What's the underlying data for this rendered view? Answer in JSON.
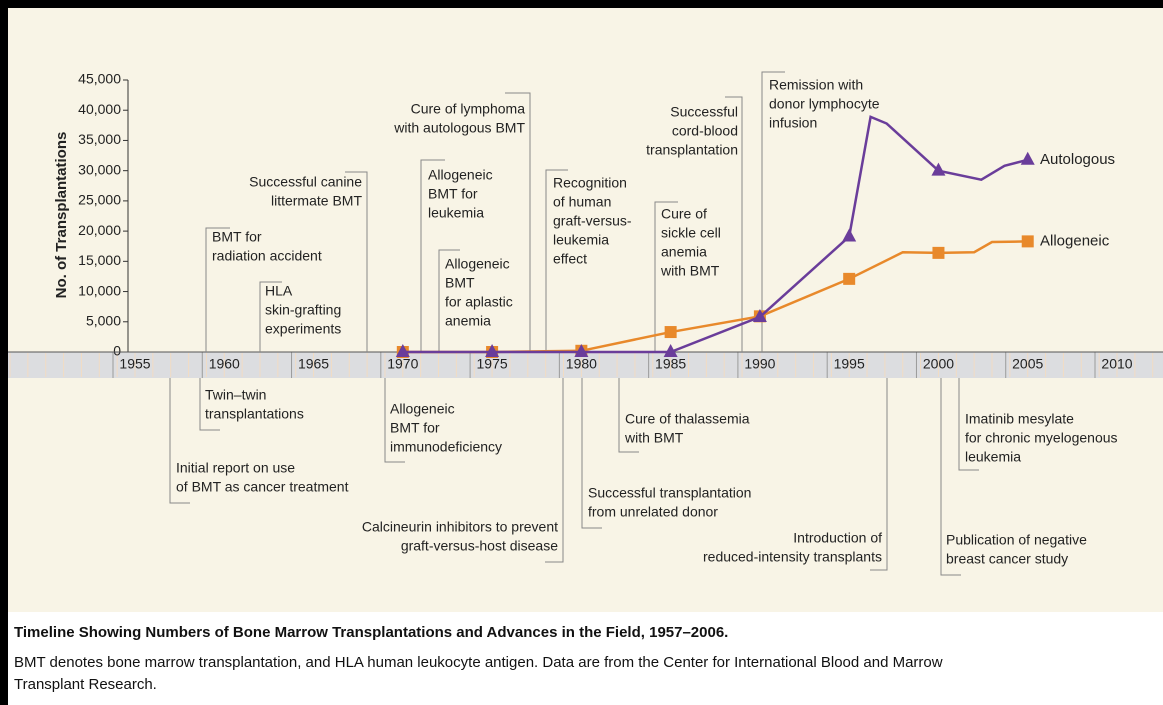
{
  "chart_data": {
    "type": "line",
    "ylabel": "No. of Transplantations",
    "xlim": [
      1955,
      2010
    ],
    "xticks": [
      1955,
      1960,
      1965,
      1970,
      1975,
      1980,
      1985,
      1990,
      1995,
      2000,
      2005,
      2010
    ],
    "ylim": [
      0,
      45000
    ],
    "yticks": [
      0,
      {
        "value": 5000,
        "label": "5,000"
      },
      {
        "value": 10000,
        "label": "10,000"
      },
      {
        "value": 15000,
        "label": "15,000"
      },
      {
        "value": 20000,
        "label": "20,000"
      },
      {
        "value": 25000,
        "label": "25,000"
      },
      {
        "value": 30000,
        "label": "30,000"
      },
      {
        "value": 35000,
        "label": "35,000"
      },
      {
        "value": 40000,
        "label": "40,000"
      },
      {
        "value": 45000,
        "label": "45,000"
      }
    ],
    "series": [
      {
        "name": "Allogeneic",
        "color": "#e8892b",
        "label_color": "#c8502a",
        "marker": "square",
        "x": [
          1970,
          1975,
          1980,
          1985,
          1990,
          1995,
          1998,
          2000,
          2002,
          2003,
          2005
        ],
        "values": [
          0,
          0,
          200,
          3300,
          5900,
          12100,
          16500,
          16400,
          16500,
          18200,
          18300
        ]
      },
      {
        "name": "Autologous",
        "color": "#6a3d9a",
        "label_color": "#6a3d9a",
        "marker": "triangle",
        "x": [
          1970,
          1975,
          1980,
          1985,
          1990,
          1995,
          1996.2,
          1997.1,
          2000,
          2002.4,
          2003.7,
          2005
        ],
        "values": [
          0,
          0,
          0,
          0,
          5800,
          19100,
          38900,
          37800,
          30000,
          28500,
          30800,
          31800
        ]
      }
    ],
    "annotations": [
      {
        "lines": [
          "BMT for",
          "radiation accident"
        ]
      },
      {
        "lines": [
          "HLA",
          "skin-grafting",
          "experiments"
        ]
      },
      {
        "lines": [
          "Successful canine",
          "littermate BMT"
        ]
      },
      {
        "lines": [
          "Cure of lymphoma",
          "with autologous BMT"
        ]
      },
      {
        "lines": [
          "Allogeneic",
          "BMT for",
          "leukemia"
        ]
      },
      {
        "lines": [
          "Allogeneic",
          "BMT",
          "for aplastic",
          "anemia"
        ]
      },
      {
        "lines": [
          "Recognition",
          "of human",
          "graft-versus-",
          "leukemia",
          "effect"
        ]
      },
      {
        "lines": [
          "Successful",
          "cord-blood",
          "transplantation"
        ]
      },
      {
        "lines": [
          "Cure of",
          "sickle cell",
          "anemia",
          "with BMT"
        ]
      },
      {
        "lines": [
          "Remission with",
          "donor lymphocyte",
          "infusion"
        ]
      },
      {
        "lines": [
          "Twin–twin",
          "transplantations"
        ]
      },
      {
        "lines": [
          "Initial report on use",
          "of BMT as cancer treatment"
        ]
      },
      {
        "lines": [
          "Allogeneic",
          "BMT for",
          "immunodeficiency"
        ]
      },
      {
        "lines": [
          "Calcineurin inhibitors to prevent",
          "graft-versus-host disease"
        ]
      },
      {
        "lines": [
          "Cure of thalassemia",
          "with BMT"
        ]
      },
      {
        "lines": [
          "Successful transplantation",
          "from unrelated donor"
        ]
      },
      {
        "lines": [
          "Introduction of",
          "reduced-intensity transplants"
        ]
      },
      {
        "lines": [
          "Imatinib mesylate",
          "for chronic myelogenous",
          "leukemia"
        ]
      },
      {
        "lines": [
          "Publication of negative",
          "breast cancer study"
        ]
      }
    ]
  },
  "caption": {
    "title": "Timeline Showing Numbers of Bone Marrow Transplantations and Advances in the Field, 1957–2006.",
    "text_lines": [
      "BMT denotes bone marrow transplantation, and HLA human leukocyte antigen. Data are from the Center for International Blood and Marrow",
      "Transplant Research."
    ]
  }
}
